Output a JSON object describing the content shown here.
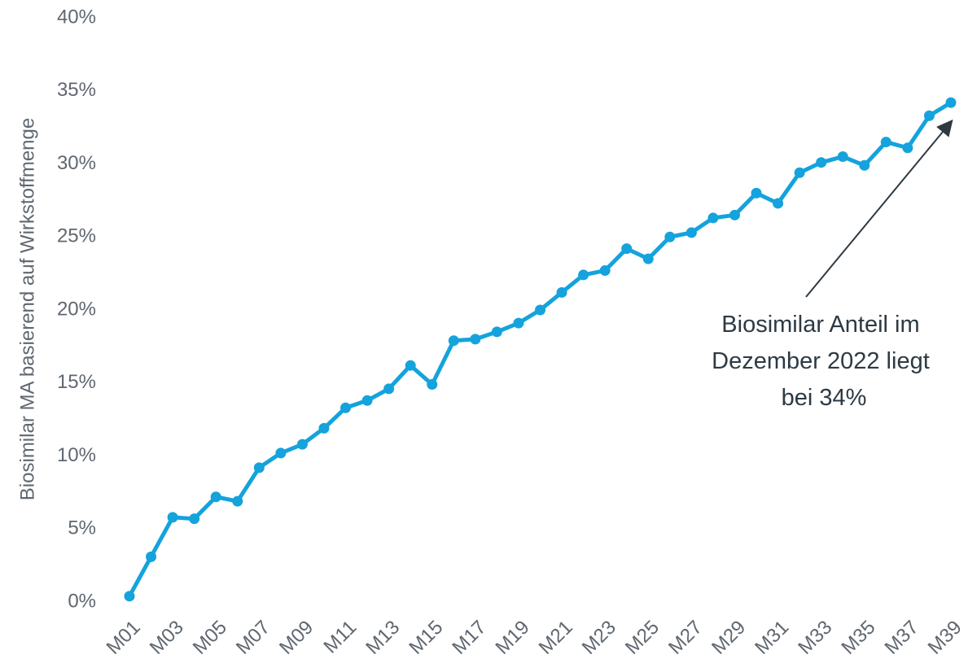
{
  "chart_data": {
    "type": "line",
    "y_label": "Biosimilar MA basierend auf Wirkstoffmenge",
    "categories": [
      "M01",
      null,
      "M03",
      null,
      "M05",
      null,
      "M07",
      null,
      "M09",
      null,
      "M11",
      null,
      "M13",
      null,
      "M15",
      null,
      "M17",
      null,
      "M19",
      null,
      "M21",
      null,
      "M23",
      null,
      "M25",
      null,
      "M27",
      null,
      "M29",
      null,
      "M31",
      null,
      "M33",
      null,
      "M35",
      null,
      "M37",
      null,
      "M39"
    ],
    "series": [
      {
        "name": "Biosimilar Anteil",
        "color": "#14a3dc",
        "values": [
          0.4,
          3.1,
          5.8,
          5.7,
          7.2,
          6.9,
          9.2,
          10.2,
          10.8,
          11.9,
          13.3,
          13.8,
          14.6,
          16.2,
          14.9,
          17.9,
          18.0,
          18.5,
          19.1,
          20.0,
          21.2,
          22.4,
          22.7,
          24.2,
          23.5,
          25.0,
          25.3,
          26.3,
          26.5,
          28.0,
          27.3,
          29.4,
          30.1,
          30.5,
          29.9,
          31.5,
          31.1,
          33.3,
          34.2
        ]
      }
    ],
    "ylim": [
      0,
      40
    ],
    "yticks": [
      {
        "value": 0,
        "label": "0%"
      },
      {
        "value": 5,
        "label": "5%"
      },
      {
        "value": 10,
        "label": "10%"
      },
      {
        "value": 15,
        "label": "15%"
      },
      {
        "value": 20,
        "label": "20%"
      },
      {
        "value": 25,
        "label": "25%"
      },
      {
        "value": 30,
        "label": "30%"
      },
      {
        "value": 35,
        "label": "35%"
      },
      {
        "value": 40,
        "label": "40%"
      }
    ],
    "grid": false,
    "annotation": {
      "lines": [
        "Biosimilar Anteil im",
        "Dezember 2022 liegt",
        "bei 34%"
      ]
    }
  }
}
